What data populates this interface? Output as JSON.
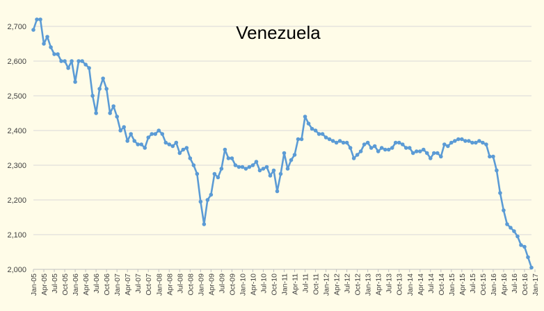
{
  "chart_data": {
    "type": "line",
    "title": "Venezuela",
    "xlabel": "",
    "ylabel": "",
    "ylim": [
      2000,
      2750
    ],
    "yticks": [
      "2,000",
      "2,100",
      "2,200",
      "2,300",
      "2,400",
      "2,500",
      "2,600",
      "2,700"
    ],
    "ytick_values": [
      2000,
      2100,
      2200,
      2300,
      2400,
      2500,
      2600,
      2700
    ],
    "grid": "horizontal",
    "legend": "none",
    "x_start": "Jan-05",
    "x_labels": [
      "Jan-05",
      "Apr-05",
      "Jul-05",
      "Oct-05",
      "Jan-06",
      "Apr-06",
      "Jul-06",
      "Oct-06",
      "Jan-07",
      "Apr-07",
      "Jul-07",
      "Oct-07",
      "Jan-08",
      "Apr-08",
      "Jul-08",
      "Oct-08",
      "Jan-09",
      "Apr-09",
      "Jul-09",
      "Oct-09",
      "Jan-10",
      "Apr-10",
      "Jul-10",
      "Oct-10",
      "Jan-11",
      "Apr-11",
      "Jul-11",
      "Oct-11",
      "Jan-12",
      "Apr-12",
      "Jul-12",
      "Oct-12",
      "Jan-13",
      "Apr-13",
      "Jul-13",
      "Oct-13",
      "Jan-14",
      "Apr-14",
      "Jul-14",
      "Oct-14",
      "Jan-15",
      "Apr-15",
      "Jul-15",
      "Oct-15",
      "Jan-16",
      "Apr-16",
      "Jul-16",
      "Oct-16",
      "Jan-17"
    ],
    "series": [
      {
        "name": "",
        "color": "#5B9BD5",
        "values": [
          2690,
          2720,
          2720,
          2650,
          2670,
          2640,
          2620,
          2620,
          2600,
          2600,
          2580,
          2600,
          2540,
          2600,
          2600,
          2590,
          2580,
          2500,
          2450,
          2520,
          2550,
          2520,
          2450,
          2470,
          2440,
          2400,
          2410,
          2370,
          2390,
          2370,
          2360,
          2360,
          2350,
          2380,
          2390,
          2390,
          2400,
          2390,
          2365,
          2360,
          2355,
          2365,
          2335,
          2345,
          2350,
          2320,
          2300,
          2275,
          2195,
          2130,
          2200,
          2215,
          2275,
          2265,
          2290,
          2345,
          2320,
          2320,
          2300,
          2295,
          2295,
          2290,
          2295,
          2300,
          2310,
          2285,
          2290,
          2295,
          2270,
          2285,
          2225,
          2275,
          2335,
          2290,
          2315,
          2330,
          2375,
          2375,
          2440,
          2420,
          2405,
          2400,
          2390,
          2390,
          2380,
          2375,
          2370,
          2365,
          2370,
          2365,
          2365,
          2350,
          2320,
          2330,
          2340,
          2360,
          2365,
          2350,
          2355,
          2340,
          2350,
          2345,
          2345,
          2350,
          2365,
          2365,
          2360,
          2350,
          2350,
          2335,
          2340,
          2340,
          2345,
          2335,
          2320,
          2335,
          2335,
          2325,
          2360,
          2355,
          2365,
          2370,
          2375,
          2375,
          2370,
          2370,
          2365,
          2365,
          2370,
          2365,
          2360,
          2325,
          2325,
          2285,
          2220,
          2170,
          2130,
          2120,
          2110,
          2095,
          2070,
          2065,
          2035,
          2005
        ]
      }
    ]
  }
}
